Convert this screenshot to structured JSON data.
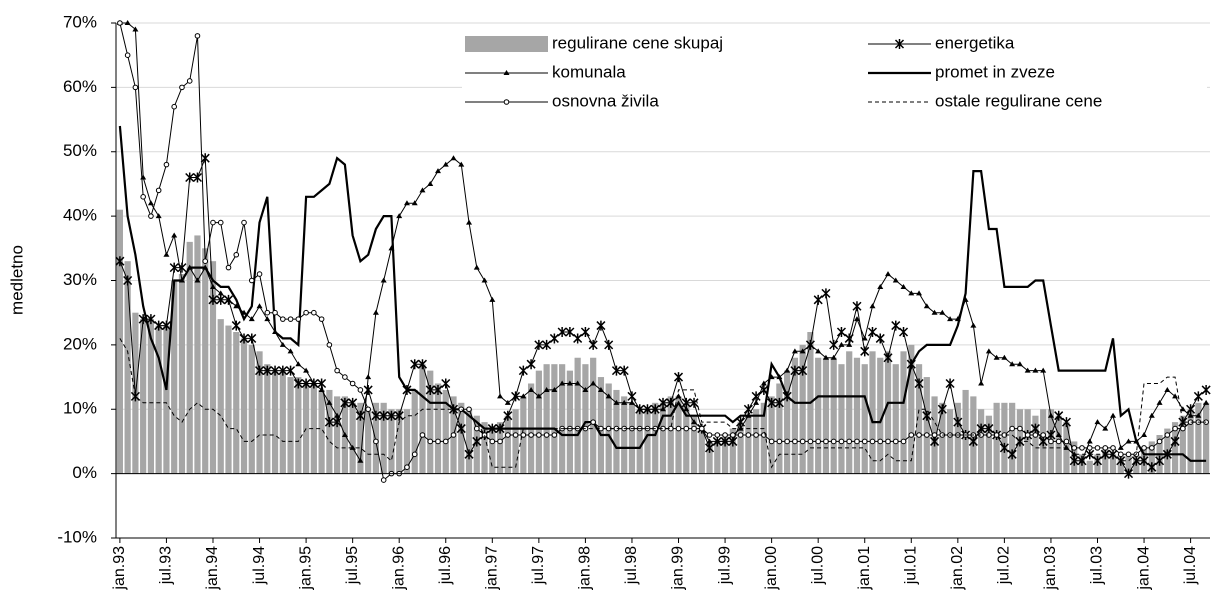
{
  "chart_data": {
    "type": "bar-line",
    "ylabel": "medletno",
    "ylim": [
      -10,
      70
    ],
    "yticks": [
      {
        "value": -10,
        "label": "-10%"
      },
      {
        "value": 0,
        "label": "0%"
      },
      {
        "value": 10,
        "label": "10%"
      },
      {
        "value": 20,
        "label": "20%"
      },
      {
        "value": 30,
        "label": "30%"
      },
      {
        "value": 40,
        "label": "40%"
      },
      {
        "value": 50,
        "label": "50%"
      },
      {
        "value": 60,
        "label": "60%"
      },
      {
        "value": 70,
        "label": "70%"
      }
    ],
    "grid": true,
    "legend": "upper right",
    "categories": [
      "jan.93",
      null,
      null,
      null,
      null,
      null,
      "jul.93",
      null,
      null,
      null,
      null,
      null,
      "jan.94",
      null,
      null,
      null,
      null,
      null,
      "jul.94",
      null,
      null,
      null,
      null,
      null,
      "jan.95",
      null,
      null,
      null,
      null,
      null,
      "jul.95",
      null,
      null,
      null,
      null,
      null,
      "jan.96",
      null,
      null,
      null,
      null,
      null,
      "jul.96",
      null,
      null,
      null,
      null,
      null,
      "jan.97",
      null,
      null,
      null,
      null,
      null,
      "jul.97",
      null,
      null,
      null,
      null,
      null,
      "jan.98",
      null,
      null,
      null,
      null,
      null,
      "jul.98",
      null,
      null,
      null,
      null,
      null,
      "jan.99",
      null,
      null,
      null,
      null,
      null,
      "jul.99",
      null,
      null,
      null,
      null,
      null,
      "jan.00",
      null,
      null,
      null,
      null,
      null,
      "jul.00",
      null,
      null,
      null,
      null,
      null,
      "jan.01",
      null,
      null,
      null,
      null,
      null,
      "jul.01",
      null,
      null,
      null,
      null,
      null,
      "jan.02",
      null,
      null,
      null,
      null,
      null,
      "jul.02",
      null,
      null,
      null,
      null,
      null,
      "jan.03",
      null,
      null,
      null,
      null,
      null,
      "jul.03",
      null,
      null,
      null,
      null,
      null,
      "jan.04",
      null,
      null,
      null,
      null,
      null,
      "jul.04",
      null,
      null
    ],
    "series": [
      {
        "name": "regulirane cene skupaj",
        "kind": "bar",
        "color": "#a6a6a6",
        "values": [
          41,
          33,
          25,
          24,
          24,
          23,
          23,
          30,
          31,
          36,
          37,
          35,
          33,
          24,
          23,
          22,
          21,
          20,
          19,
          17,
          16,
          16,
          15,
          15,
          14,
          14,
          13,
          13,
          12,
          12,
          11,
          11,
          10,
          11,
          11,
          10,
          10,
          10,
          13,
          17,
          16,
          14,
          13,
          12,
          11,
          10,
          9,
          8,
          7,
          8,
          9,
          10,
          12,
          14,
          16,
          17,
          17,
          17,
          16,
          18,
          17,
          18,
          15,
          14,
          13,
          12,
          11,
          10,
          10,
          11,
          11,
          12,
          12,
          11,
          9,
          7,
          5,
          5,
          6,
          7,
          8,
          9,
          10,
          11,
          12,
          14,
          16,
          18,
          20,
          22,
          18,
          18,
          18,
          17,
          19,
          18,
          17,
          19,
          18,
          19,
          17,
          19,
          20,
          17,
          15,
          12,
          11,
          10,
          11,
          13,
          12,
          10,
          9,
          11,
          11,
          11,
          10,
          10,
          9,
          10,
          10,
          9,
          8,
          5,
          3,
          2,
          3,
          4,
          3,
          3,
          3,
          3,
          4,
          5,
          6,
          7,
          8,
          9,
          10,
          11,
          11
        ]
      },
      {
        "name": "energetika",
        "kind": "line",
        "marker": "star",
        "color": "#000000",
        "values": [
          33,
          30,
          12,
          24,
          24,
          23,
          23,
          32,
          32,
          46,
          46,
          49,
          27,
          27,
          27,
          23,
          21,
          21,
          16,
          16,
          16,
          16,
          16,
          14,
          14,
          14,
          14,
          8,
          8,
          11,
          11,
          9,
          13,
          9,
          9,
          9,
          9,
          13,
          17,
          17,
          13,
          13,
          14,
          10,
          7,
          3,
          5,
          6,
          7,
          7,
          9,
          12,
          16,
          17,
          20,
          20,
          21,
          22,
          22,
          21,
          22,
          20,
          23,
          20,
          16,
          16,
          12,
          10,
          10,
          10,
          11,
          11,
          15,
          11,
          11,
          7,
          4,
          5,
          5,
          5,
          8,
          10,
          12,
          13,
          11,
          11,
          12,
          16,
          16,
          20,
          27,
          28,
          20,
          22,
          21,
          26,
          19,
          22,
          21,
          18,
          23,
          22,
          17,
          14,
          9,
          5,
          10,
          14,
          8,
          6,
          5,
          7,
          7,
          6,
          4,
          3,
          5,
          6,
          7,
          5,
          6,
          9,
          8,
          2,
          2,
          3,
          2,
          3,
          3,
          2,
          0,
          2,
          2,
          1,
          2,
          3,
          5,
          8,
          10,
          12,
          13
        ]
      },
      {
        "name": "komunala",
        "kind": "line",
        "marker": "triangle",
        "color": "#000000",
        "values": [
          70,
          70,
          69,
          46,
          42,
          40,
          34,
          37,
          30,
          32,
          30,
          32,
          29,
          28,
          27,
          26,
          25,
          24,
          26,
          24,
          22,
          20,
          19,
          17,
          16,
          14,
          13,
          11,
          9,
          6,
          4,
          2,
          15,
          25,
          30,
          35,
          40,
          42,
          42,
          44,
          45,
          47,
          48,
          49,
          48,
          39,
          32,
          30,
          27,
          12,
          11,
          12,
          12,
          13,
          12,
          13,
          13,
          14,
          14,
          14,
          13,
          14,
          13,
          12,
          11,
          11,
          11,
          10,
          10,
          10,
          10,
          11,
          12,
          10,
          8,
          7,
          5,
          5,
          5,
          6,
          7,
          9,
          11,
          14,
          15,
          15,
          16,
          19,
          19,
          20,
          19,
          18,
          18,
          20,
          20,
          24,
          21,
          26,
          29,
          31,
          30,
          29,
          28,
          28,
          26,
          25,
          25,
          24,
          24,
          27,
          23,
          14,
          19,
          18,
          18,
          17,
          17,
          16,
          16,
          16,
          9,
          6,
          4,
          3,
          2,
          5,
          8,
          7,
          9,
          4,
          5,
          5,
          6,
          9,
          11,
          13,
          12,
          10,
          9,
          9,
          11
        ]
      },
      {
        "name": "promet in zveze",
        "kind": "line",
        "width": 2.2,
        "color": "#000000",
        "values": [
          54,
          40,
          34,
          26,
          21,
          18,
          13,
          30,
          30,
          32,
          32,
          32,
          30,
          29,
          29,
          27,
          24,
          26,
          39,
          43,
          22,
          21,
          21,
          20,
          43,
          43,
          44,
          45,
          49,
          48,
          37,
          33,
          34,
          38,
          40,
          40,
          15,
          13,
          13,
          12,
          11,
          11,
          11,
          10,
          10,
          9,
          8,
          7,
          7,
          7,
          7,
          7,
          7,
          7,
          7,
          7,
          7,
          6,
          6,
          6,
          8,
          8,
          6,
          6,
          4,
          4,
          4,
          4,
          6,
          6,
          9,
          9,
          11,
          9,
          9,
          9,
          9,
          9,
          9,
          8,
          9,
          9,
          9,
          9,
          17,
          15,
          12,
          11,
          11,
          11,
          12,
          12,
          12,
          12,
          12,
          12,
          12,
          8,
          8,
          11,
          11,
          11,
          17,
          19,
          20,
          20,
          20,
          20,
          23,
          28,
          47,
          47,
          38,
          38,
          29,
          29,
          29,
          29,
          30,
          30,
          23,
          16,
          16,
          16,
          16,
          16,
          16,
          16,
          21,
          9,
          10,
          5,
          3,
          3,
          3,
          3,
          3,
          3,
          2,
          2,
          2
        ]
      },
      {
        "name": "osnovna živila",
        "kind": "line",
        "marker": "circle",
        "color": "#000000",
        "values": [
          70,
          65,
          60,
          43,
          40,
          44,
          48,
          57,
          60,
          61,
          68,
          33,
          39,
          39,
          32,
          34,
          39,
          30,
          31,
          25,
          25,
          24,
          24,
          24,
          25,
          25,
          24,
          20,
          16,
          15,
          14,
          13,
          10,
          5,
          -1,
          0,
          0,
          1,
          3,
          6,
          5,
          5,
          5,
          6,
          10,
          10,
          7,
          6,
          5,
          5,
          6,
          6,
          6,
          6,
          6,
          6,
          6,
          7,
          7,
          7,
          7,
          8,
          7,
          7,
          7,
          7,
          7,
          7,
          7,
          7,
          7,
          7,
          7,
          7,
          7,
          7,
          6,
          6,
          6,
          6,
          6,
          6,
          6,
          6,
          5,
          5,
          5,
          5,
          5,
          5,
          5,
          5,
          5,
          5,
          5,
          5,
          5,
          5,
          5,
          5,
          5,
          5,
          6,
          6,
          6,
          6,
          6,
          6,
          6,
          6,
          6,
          6,
          6,
          6,
          6,
          7,
          7,
          6,
          6,
          6,
          5,
          5,
          5,
          4,
          4,
          4,
          4,
          4,
          4,
          3,
          3,
          3,
          4,
          4,
          5,
          6,
          7,
          7,
          8,
          8,
          8
        ]
      },
      {
        "name": "ostale regulirane cene",
        "kind": "line",
        "dash": "4 3",
        "color": "#000000",
        "values": [
          21,
          19,
          12,
          11,
          11,
          11,
          11,
          9,
          8,
          10,
          11,
          10,
          10,
          9,
          7,
          7,
          5,
          5,
          6,
          6,
          6,
          5,
          5,
          5,
          7,
          7,
          7,
          5,
          4,
          4,
          4,
          4,
          3,
          3,
          3,
          2,
          8,
          9,
          9,
          10,
          10,
          10,
          10,
          10,
          10,
          9,
          8,
          6,
          1,
          1,
          1,
          1,
          7,
          7,
          7,
          7,
          7,
          7,
          7,
          7,
          7,
          7,
          7,
          7,
          7,
          7,
          7,
          7,
          7,
          7,
          7,
          7,
          13,
          13,
          13,
          8,
          8,
          8,
          8,
          7,
          7,
          7,
          7,
          7,
          1,
          3,
          3,
          3,
          3,
          4,
          4,
          4,
          4,
          4,
          4,
          4,
          4,
          2,
          2,
          3,
          2,
          2,
          2,
          10,
          10,
          8,
          6,
          6,
          6,
          6,
          6,
          6,
          6,
          6,
          6,
          6,
          5,
          5,
          4,
          4,
          4,
          4,
          4,
          3,
          3,
          3,
          3,
          3,
          3,
          2,
          2,
          3,
          14,
          14,
          14,
          15,
          15,
          8,
          8,
          8,
          8
        ]
      }
    ]
  }
}
